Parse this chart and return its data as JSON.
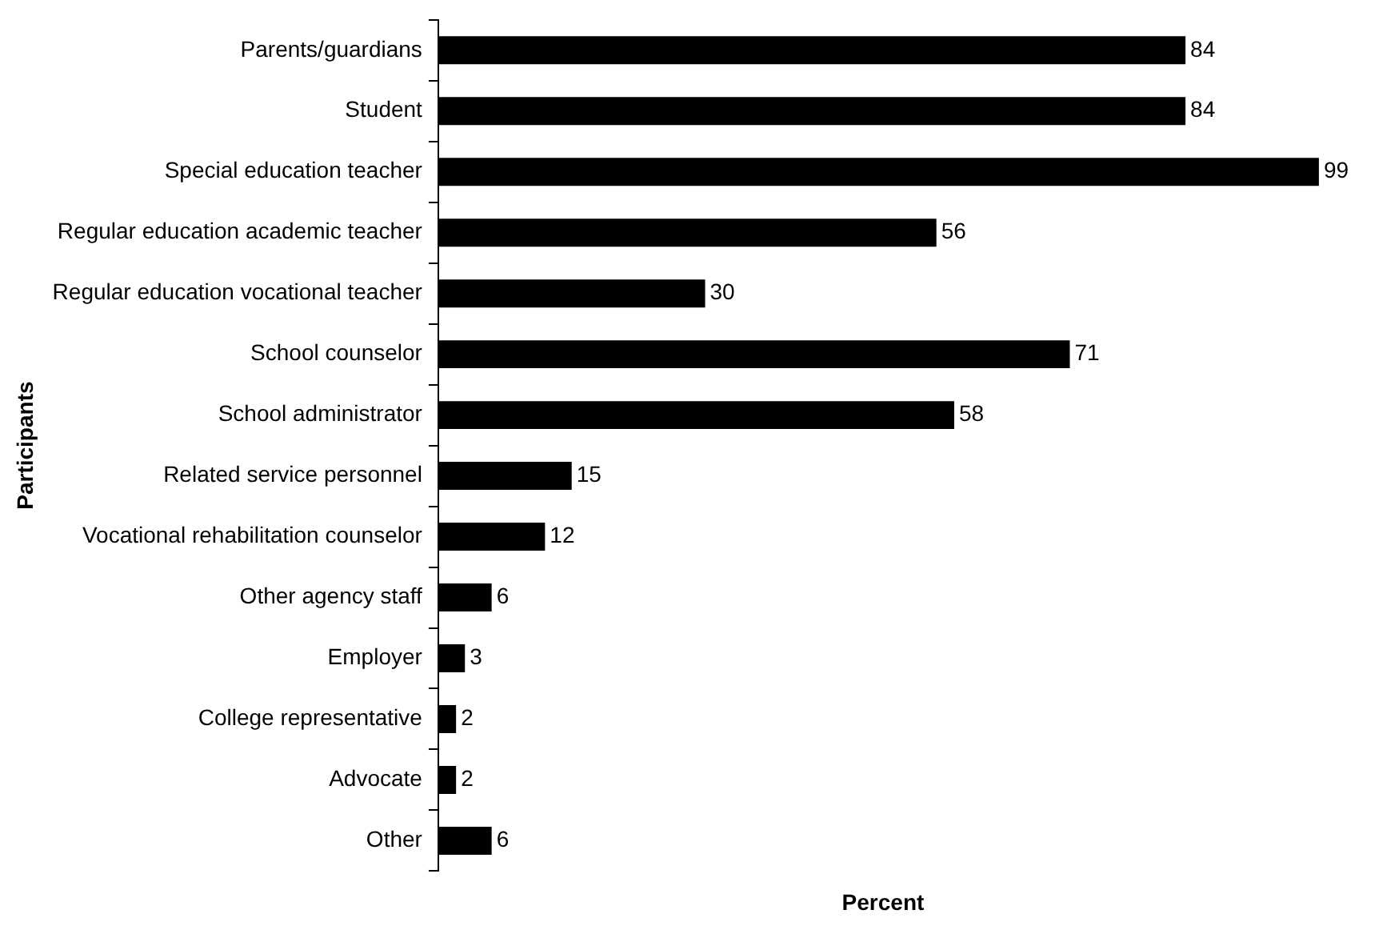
{
  "chart_data": {
    "type": "bar",
    "orientation": "horizontal",
    "categories": [
      "Parents/guardians",
      "Student",
      "Special education teacher",
      "Regular education academic teacher",
      "Regular education vocational teacher",
      "School counselor",
      "School administrator",
      "Related service personnel",
      "Vocational rehabilitation counselor",
      "Other agency staff",
      "Employer",
      "College representative",
      "Advocate",
      "Other"
    ],
    "values": [
      84,
      84,
      99,
      56,
      30,
      71,
      58,
      15,
      12,
      6,
      3,
      2,
      2,
      6
    ],
    "color": "#000000",
    "xlabel": "Percent",
    "ylabel": "Participants",
    "data_labels": true,
    "grid": false,
    "legend": false,
    "tick_labels": "y"
  }
}
